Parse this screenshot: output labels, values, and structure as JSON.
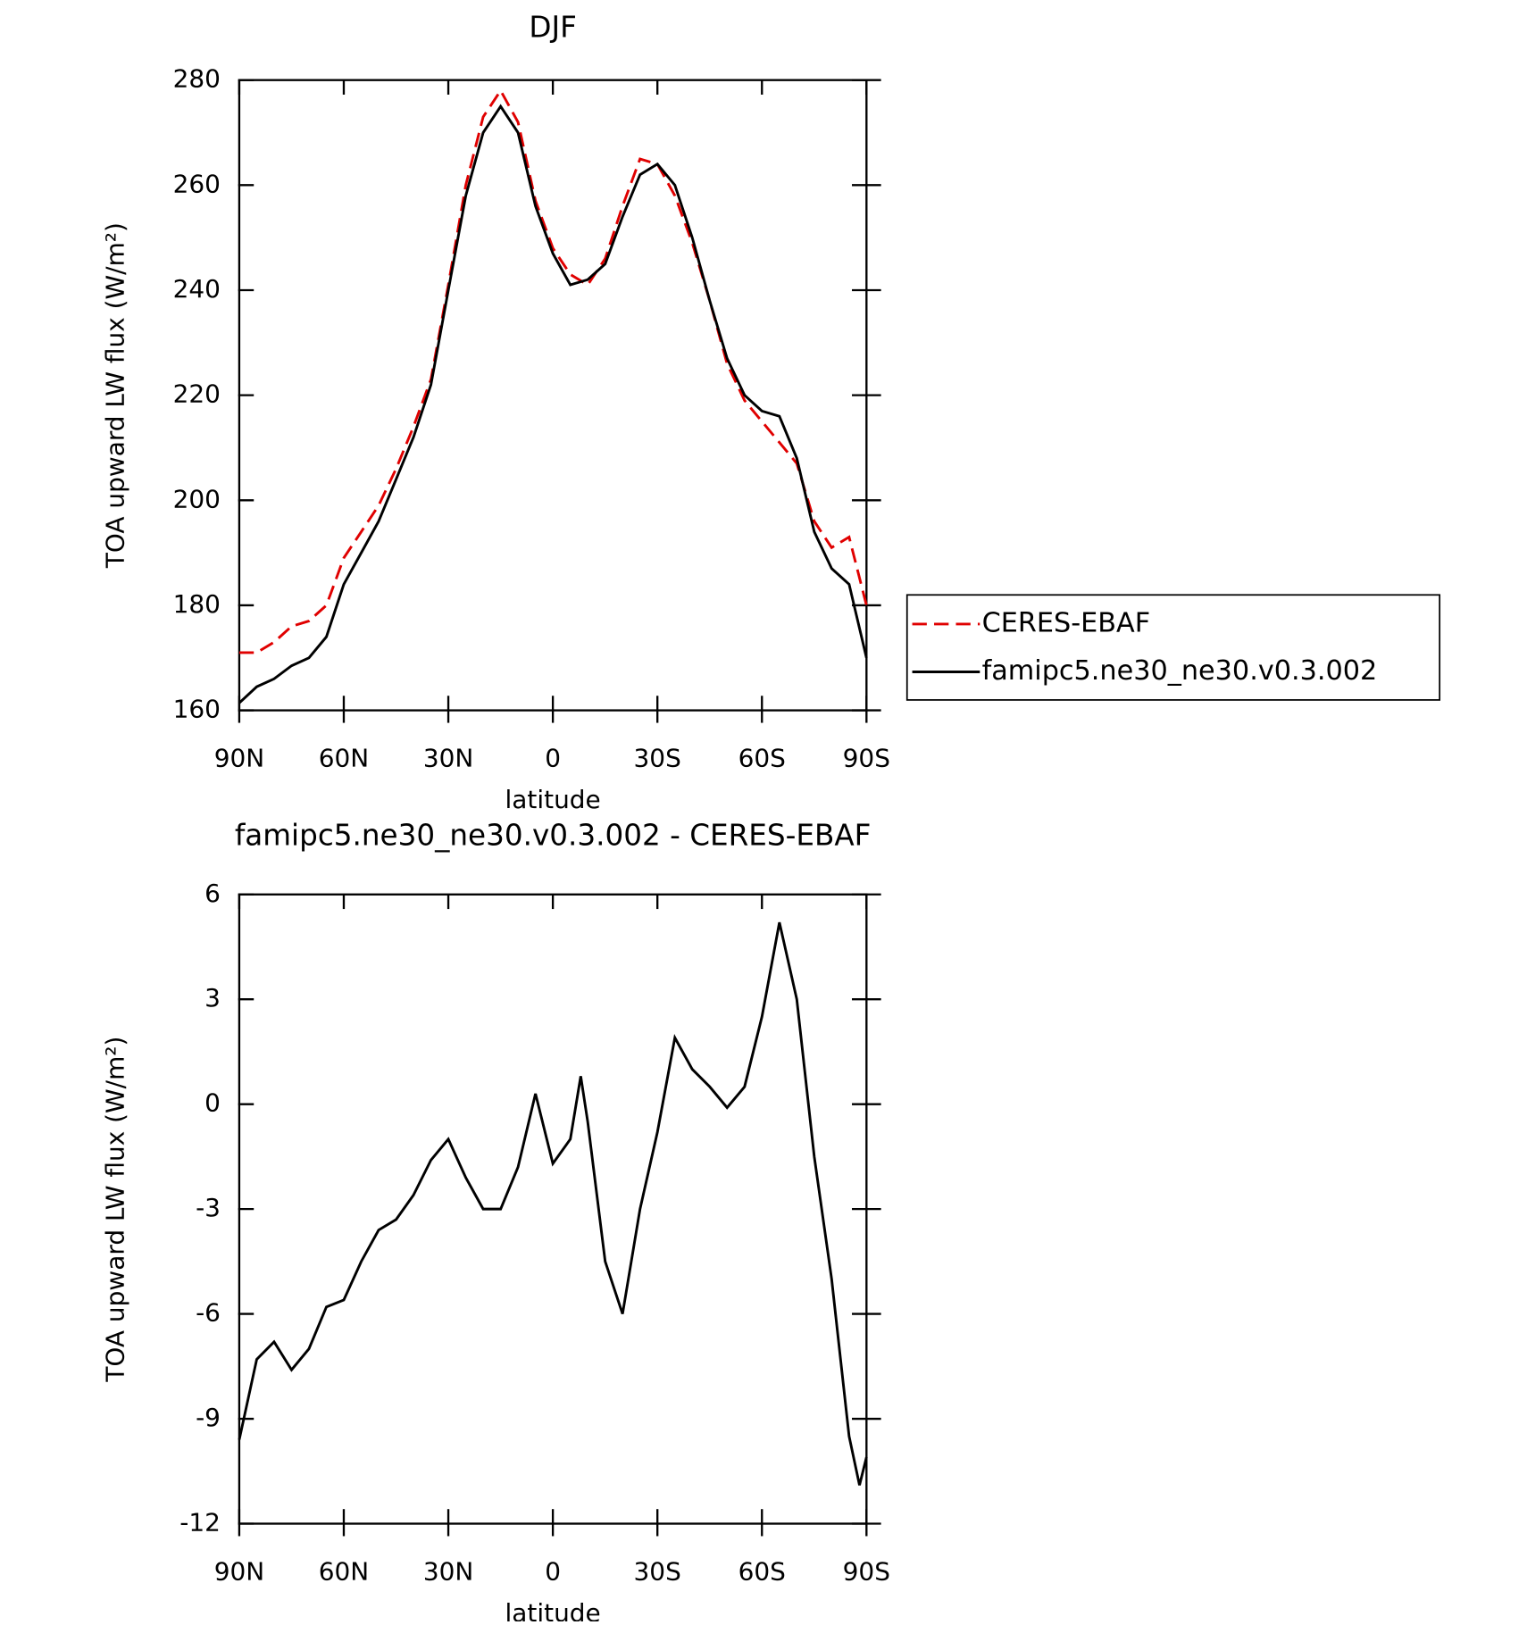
{
  "chart_data": [
    {
      "type": "line",
      "title": "DJF",
      "xlabel": "latitude",
      "ylabel": "TOA upward LW flux (W/m²)",
      "x": [
        90,
        85,
        80,
        75,
        70,
        65,
        60,
        55,
        50,
        45,
        40,
        35,
        30,
        25,
        20,
        15,
        10,
        5,
        0,
        -5,
        -10,
        -15,
        -20,
        -25,
        -30,
        -35,
        -40,
        -45,
        -50,
        -55,
        -60,
        -65,
        -70,
        -75,
        -80,
        -85,
        -90
      ],
      "series": [
        {
          "name": "CERES-EBAF",
          "color": "#e00000",
          "dash": true,
          "values": [
            171,
            171,
            173,
            176,
            177,
            180,
            189,
            194,
            199,
            206,
            214,
            223,
            241,
            260,
            273,
            278,
            272,
            257,
            248,
            243,
            241,
            246,
            256,
            265,
            264,
            258,
            249,
            238,
            226,
            219,
            215,
            211,
            207,
            196,
            191,
            193,
            180
          ]
        },
        {
          "name": "famipc5.ne30_ne30.v0.3.002",
          "color": "#000000",
          "dash": false,
          "values": [
            161.4,
            164.5,
            166,
            168.5,
            170,
            174,
            184,
            190,
            196,
            204,
            212,
            222,
            240,
            258,
            270,
            275,
            270,
            256,
            247,
            241,
            242,
            245,
            254,
            262,
            264,
            260,
            250,
            238,
            227,
            220,
            217,
            216,
            208,
            194,
            187,
            184,
            170
          ]
        }
      ],
      "xlim": [
        90,
        -90
      ],
      "xticks": [
        {
          "value": 90,
          "label": "90N"
        },
        {
          "value": 60,
          "label": "60N"
        },
        {
          "value": 30,
          "label": "30N"
        },
        0,
        {
          "value": -30,
          "label": "30S"
        },
        {
          "value": -60,
          "label": "60S"
        },
        {
          "value": -90,
          "label": "90S"
        }
      ],
      "ylim": [
        160,
        280
      ],
      "yticks": [
        160,
        180,
        200,
        220,
        240,
        260,
        280
      ],
      "legend": "right"
    },
    {
      "type": "line",
      "title": "famipc5.ne30_ne30.v0.3.002 - CERES-EBAF",
      "xlabel": "latitude",
      "ylabel": "TOA upward LW flux (W/m²)",
      "x": [
        90,
        85,
        80,
        75,
        70,
        65,
        60,
        55,
        50,
        45,
        40,
        35,
        30,
        25,
        20,
        15,
        10,
        5,
        0,
        -5,
        -8,
        -10,
        -15,
        -20,
        -25,
        -30,
        -35,
        -40,
        -45,
        -50,
        -55,
        -60,
        -65,
        -70,
        -75,
        -80,
        -85,
        -88,
        -90
      ],
      "series": [
        {
          "name": null,
          "color": "#000000",
          "dash": false,
          "values": [
            -9.6,
            -7.3,
            -6.8,
            -7.6,
            -7.0,
            -5.8,
            -5.6,
            -4.5,
            -3.6,
            -3.3,
            -2.6,
            -1.6,
            -1.0,
            -2.1,
            -3.0,
            -3.0,
            -1.8,
            0.3,
            -1.7,
            -1.0,
            0.8,
            -0.5,
            -4.5,
            -6.0,
            -3.0,
            -0.8,
            1.9,
            1.0,
            0.5,
            -0.1,
            0.5,
            2.5,
            5.2,
            3.0,
            -1.5,
            -5.0,
            -9.5,
            -10.9,
            -10.1
          ]
        }
      ],
      "xlim": [
        90,
        -90
      ],
      "xticks": [
        {
          "value": 90,
          "label": "90N"
        },
        {
          "value": 60,
          "label": "60N"
        },
        {
          "value": 30,
          "label": "30N"
        },
        0,
        {
          "value": -30,
          "label": "30S"
        },
        {
          "value": -60,
          "label": "60S"
        },
        {
          "value": -90,
          "label": "90S"
        }
      ],
      "ylim": [
        -12,
        6
      ],
      "yticks": [
        -12,
        -9,
        -6,
        -3,
        0,
        3,
        6
      ]
    }
  ]
}
